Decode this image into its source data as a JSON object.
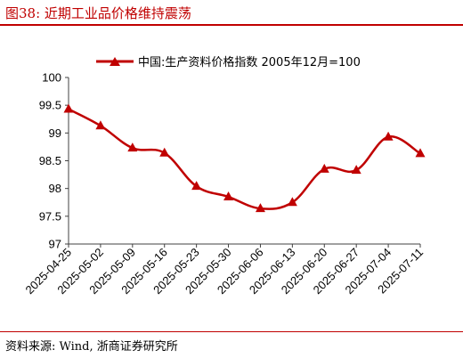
{
  "figure": {
    "title": "图38:  近期工业品价格维持震荡",
    "source": "资料来源:  Wind,  浙商证券研究所"
  },
  "colors": {
    "accent": "#c00000",
    "series": "#c00000",
    "axis": "#404040"
  },
  "chart_data": {
    "type": "line",
    "title": "",
    "xlabel": "",
    "ylabel": "",
    "legend_position": "top-center",
    "grid": false,
    "categories": [
      "2025-04-25",
      "2025-05-02",
      "2025-05-09",
      "2025-05-16",
      "2025-05-23",
      "2025-05-30",
      "2025-06-06",
      "2025-06-13",
      "2025-06-20",
      "2025-06-27",
      "2025-07-04",
      "2025-07-11"
    ],
    "y_ticks": [
      "97",
      "97.5",
      "98",
      "98.5",
      "99",
      "99.5",
      "100"
    ],
    "ylim": [
      97,
      100
    ],
    "series": [
      {
        "name": "中国:生产资料价格指数 2005年12月=100",
        "marker": "triangle",
        "values": [
          99.43,
          99.13,
          98.73,
          98.64,
          98.04,
          97.85,
          97.64,
          97.75,
          98.35,
          98.33,
          98.93,
          98.63
        ]
      }
    ]
  }
}
